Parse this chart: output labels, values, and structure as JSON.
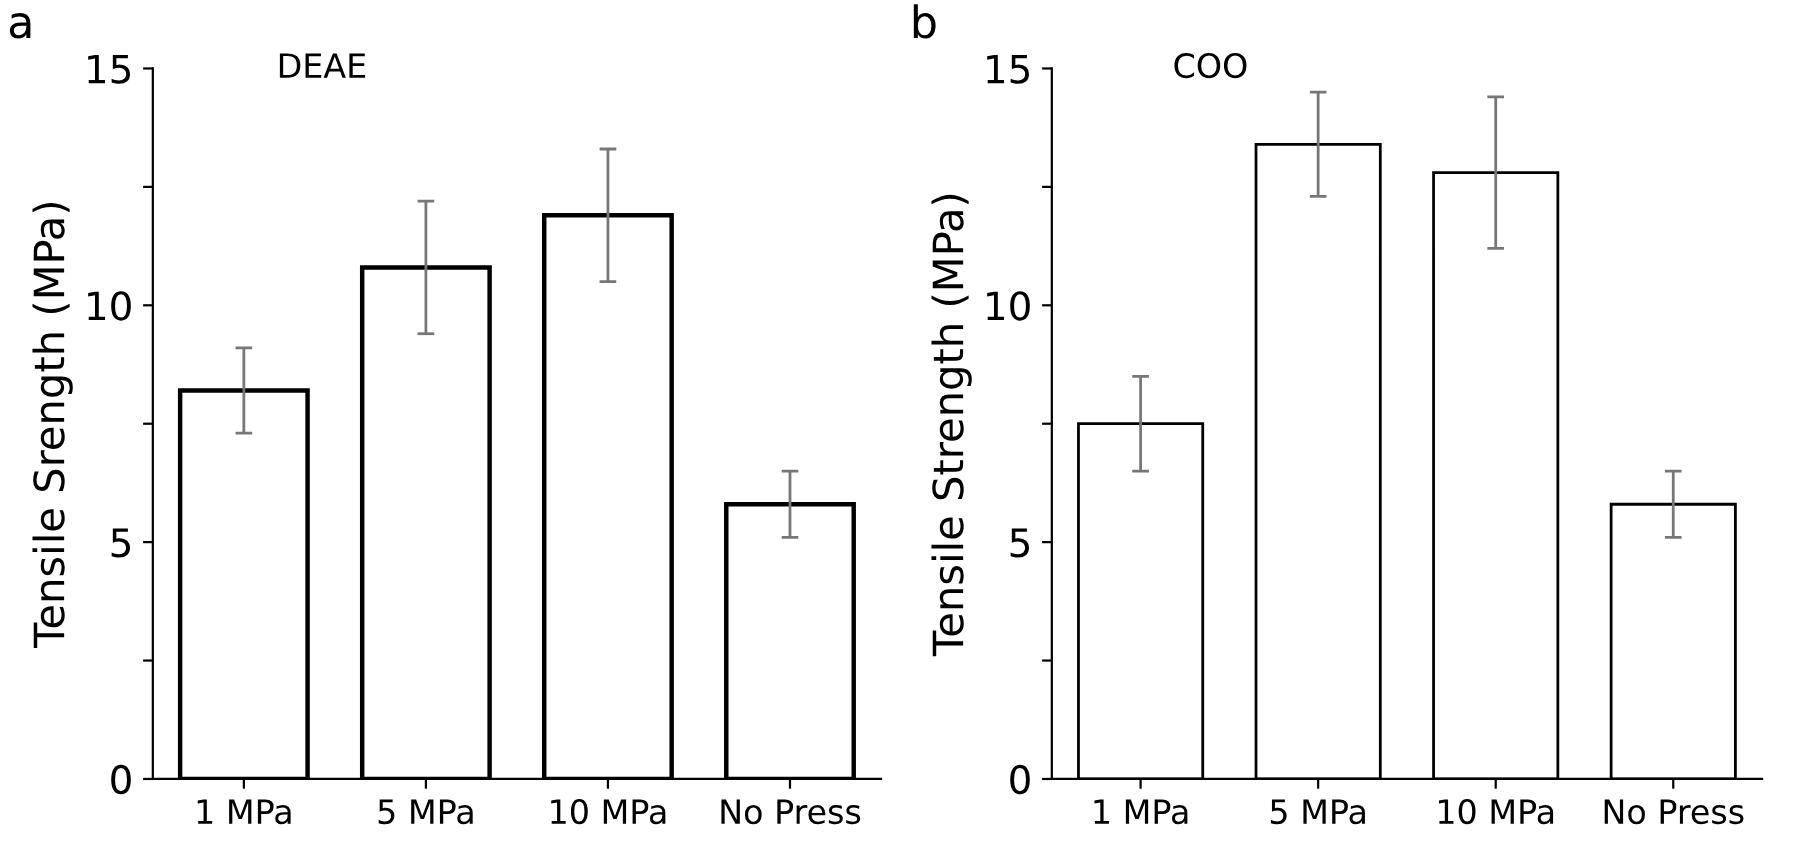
{
  "chart_data": [
    {
      "type": "bar",
      "title": "a",
      "subtitle": "DEAE",
      "ylabel": "Tensile Srength (MPa)",
      "categories": [
        "1 MPa",
        "5 MPa",
        "10 MPa",
        "No Press"
      ],
      "series": [
        {
          "color": "#ffffff",
          "values": [
            8.2,
            10.8,
            11.9,
            5.8
          ],
          "errors": [
            0.9,
            1.4,
            1.4,
            0.7
          ]
        }
      ],
      "ylim": [
        0,
        15
      ],
      "yticks": [
        0,
        {
          "value": 2.5,
          "label": null
        },
        5,
        {
          "value": 7.5,
          "label": null
        },
        10,
        {
          "value": 12.5,
          "label": null
        },
        15
      ],
      "grid": false,
      "legend": false
    },
    {
      "type": "bar",
      "title": "b",
      "subtitle": "COO",
      "ylabel": "Tensile Strength (MPa)",
      "categories": [
        "1 MPa",
        "5 MPa",
        "10 MPa",
        "No Press"
      ],
      "series": [
        {
          "color": "#ffffff",
          "values": [
            7.5,
            13.4,
            12.8,
            5.8
          ],
          "errors": [
            1.0,
            1.1,
            1.6,
            0.7
          ]
        }
      ],
      "ylim": [
        0,
        15
      ],
      "yticks": [
        0,
        {
          "value": 2.5,
          "label": null
        },
        5,
        {
          "value": 7.5,
          "label": null
        },
        10,
        {
          "value": 12.5,
          "label": null
        },
        15
      ],
      "grid": false,
      "legend": false
    }
  ]
}
